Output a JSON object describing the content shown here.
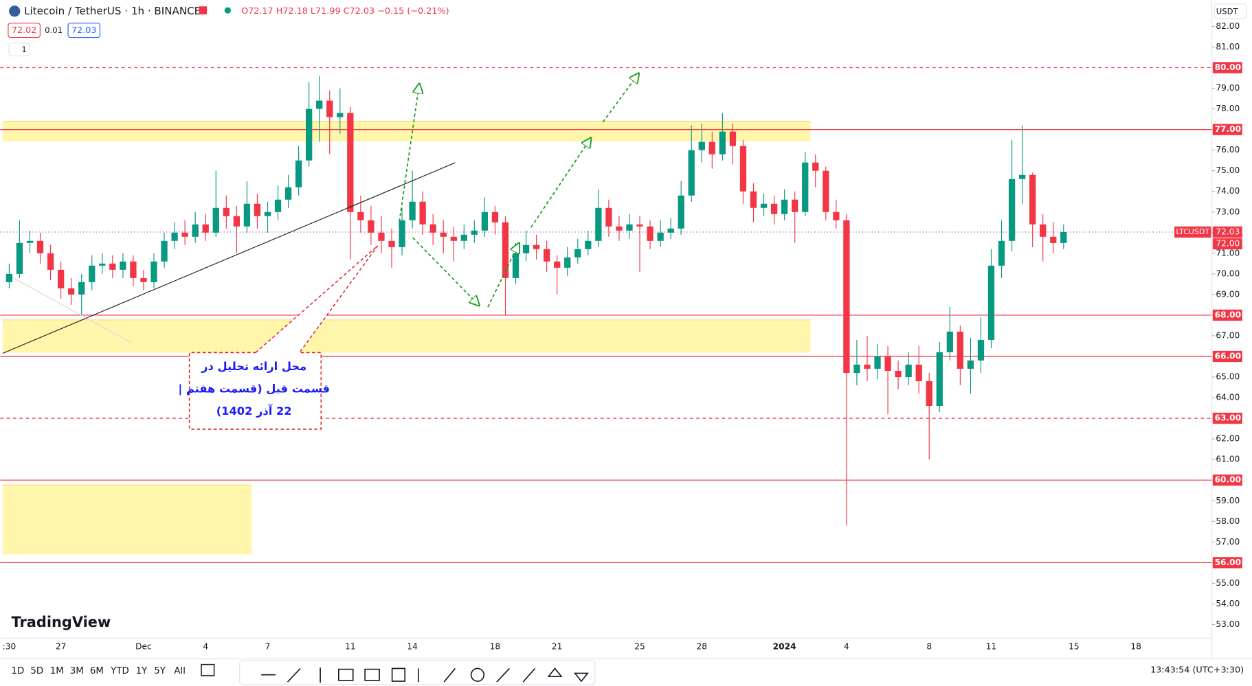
{
  "header": {
    "symbol": "Litecoin / TetherUS · 1h · BINANCE",
    "ohlc": "O72.17 H72.18 L71.99 C72.03 −0.15 (−0.21%)",
    "quote_boxes": [
      "72.02",
      "0.01",
      "72.03"
    ],
    "indicator": "1",
    "currency": "USDT"
  },
  "logo": "TradingView",
  "toolbar": {
    "intervals": [
      "1D",
      "5D",
      "1M",
      "3M",
      "6M",
      "YTD",
      "1Y",
      "5Y",
      "All"
    ],
    "clock": "13:43:54 (UTC+3:30)"
  },
  "annotation": [
    "محل ارائه تحلیل در",
    "قسمت قبل (قسمت هفتم |",
    "22 آذر 1402)"
  ],
  "chart_data": {
    "type": "candlestick",
    "up_color": "#089981",
    "down_color": "#f23645",
    "categories": [
      ":30",
      null,
      null,
      null,
      null,
      "27",
      null,
      null,
      null,
      null,
      null,
      null,
      null,
      "Dec",
      null,
      null,
      null,
      null,
      null,
      "4",
      null,
      null,
      null,
      null,
      null,
      "7",
      null,
      null,
      null,
      null,
      null,
      null,
      null,
      "11",
      null,
      null,
      null,
      null,
      null,
      "14",
      null,
      null,
      null,
      null,
      null,
      null,
      null,
      "18",
      null,
      null,
      null,
      null,
      null,
      "21",
      null,
      null,
      null,
      null,
      null,
      null,
      null,
      "25",
      null,
      null,
      null,
      null,
      null,
      "28",
      null,
      null,
      null,
      null,
      null,
      null,
      null,
      "2024",
      null,
      null,
      null,
      null,
      null,
      "4",
      null,
      null,
      null,
      null,
      null,
      null,
      null,
      "8",
      null,
      null,
      null,
      null,
      null,
      "11",
      null,
      null,
      null,
      null,
      null,
      null,
      null,
      "15",
      null,
      null,
      null,
      null,
      null,
      "18"
    ],
    "open": [
      69.6,
      70.0,
      71.5,
      71.6,
      71.0,
      70.2,
      69.3,
      69.0,
      69.6,
      70.4,
      70.5,
      70.2,
      70.6,
      69.8,
      69.6,
      70.6,
      71.6,
      72.0,
      71.8,
      72.4,
      72.0,
      73.2,
      72.8,
      72.3,
      73.4,
      72.8,
      73.0,
      73.6,
      74.2,
      75.5,
      78.0,
      78.4,
      77.6,
      77.8,
      73.0,
      72.6,
      72.0,
      71.6,
      71.3,
      72.6,
      73.5,
      72.4,
      72.0,
      71.8,
      71.6,
      71.9,
      72.1,
      73.0,
      72.5,
      69.8,
      71.0,
      71.4,
      71.2,
      70.6,
      70.3,
      70.8,
      71.2,
      71.6,
      73.2,
      72.3,
      72.1,
      72.4,
      72.3,
      71.6,
      72.0,
      72.2,
      73.8,
      76.0,
      76.4,
      75.8,
      76.9,
      76.2,
      74.0,
      73.2,
      73.4,
      72.9,
      73.6,
      73.0,
      75.4,
      75.0,
      73.0,
      72.6,
      65.2,
      65.6,
      65.4,
      66.0,
      65.3,
      65.0,
      65.6,
      64.8,
      63.6,
      66.2,
      67.2,
      65.4,
      65.8,
      66.8,
      70.4,
      71.6,
      74.6,
      74.8,
      72.4,
      71.8,
      71.5,
      null,
      null,
      null,
      null,
      null,
      null,
      null
    ],
    "high": [
      70.5,
      72.6,
      72.1,
      72.0,
      71.4,
      70.6,
      69.8,
      70.0,
      70.9,
      71.0,
      70.9,
      71.0,
      70.9,
      70.2,
      71.0,
      72.0,
      72.5,
      72.6,
      73.0,
      72.9,
      75.0,
      73.8,
      73.3,
      74.5,
      73.9,
      73.5,
      74.3,
      74.8,
      76.2,
      79.3,
      79.6,
      78.9,
      79.0,
      78.1,
      73.8,
      73.3,
      72.8,
      72.2,
      73.2,
      75.0,
      74.0,
      72.9,
      72.6,
      72.3,
      72.4,
      72.6,
      73.7,
      73.3,
      72.8,
      71.5,
      72.1,
      71.9,
      71.6,
      70.9,
      71.3,
      71.7,
      72.1,
      74.1,
      73.6,
      72.8,
      72.9,
      72.8,
      72.6,
      72.6,
      72.7,
      74.5,
      77.2,
      77.3,
      76.9,
      77.8,
      77.3,
      76.5,
      74.4,
      73.9,
      73.8,
      74.1,
      74.0,
      75.9,
      75.8,
      75.2,
      73.6,
      72.9,
      66.8,
      67.0,
      66.6,
      66.5,
      65.8,
      66.2,
      66.5,
      65.2,
      66.7,
      68.4,
      67.5,
      66.9,
      67.9,
      71.2,
      72.6,
      76.5,
      77.2,
      74.9,
      72.9,
      72.5,
      72.4,
      null,
      null,
      null,
      null,
      null,
      null,
      null
    ],
    "low": [
      69.3,
      69.8,
      71.0,
      70.5,
      69.7,
      68.8,
      68.5,
      68.0,
      69.2,
      70.0,
      69.8,
      69.8,
      69.4,
      69.2,
      69.3,
      70.3,
      71.2,
      71.4,
      71.5,
      71.6,
      71.8,
      72.2,
      71.0,
      72.0,
      72.2,
      72.0,
      72.6,
      73.2,
      73.8,
      75.2,
      76.4,
      75.8,
      76.8,
      70.7,
      72.0,
      71.4,
      71.0,
      70.3,
      70.9,
      72.2,
      71.9,
      71.4,
      71.0,
      70.6,
      71.2,
      71.5,
      71.8,
      71.9,
      68.0,
      69.5,
      70.6,
      70.7,
      70.1,
      69.0,
      69.9,
      70.5,
      70.9,
      71.3,
      71.8,
      71.6,
      71.7,
      70.1,
      71.2,
      71.3,
      71.7,
      71.9,
      73.5,
      75.4,
      75.1,
      75.5,
      75.3,
      73.4,
      72.5,
      72.8,
      72.4,
      72.6,
      71.5,
      72.8,
      74.2,
      72.6,
      72.2,
      57.8,
      64.6,
      64.8,
      64.9,
      63.2,
      64.4,
      64.6,
      64.2,
      61.0,
      63.3,
      65.8,
      64.6,
      64.2,
      65.2,
      66.4,
      69.8,
      71.1,
      73.4,
      71.3,
      70.6,
      71.0,
      71.2,
      null,
      null,
      null,
      null,
      null,
      null,
      null
    ],
    "close": [
      70.0,
      71.5,
      71.6,
      71.0,
      70.2,
      69.3,
      69.0,
      69.6,
      70.4,
      70.5,
      70.2,
      70.6,
      69.8,
      69.6,
      70.6,
      71.6,
      72.0,
      71.8,
      72.4,
      72.0,
      73.2,
      72.8,
      72.3,
      73.4,
      72.8,
      73.0,
      73.6,
      74.2,
      75.5,
      78.0,
      78.4,
      77.6,
      77.8,
      73.0,
      72.6,
      72.0,
      71.6,
      71.3,
      72.6,
      73.5,
      72.4,
      72.0,
      71.8,
      71.6,
      71.9,
      72.1,
      73.0,
      72.5,
      69.8,
      71.0,
      71.4,
      71.2,
      70.6,
      70.3,
      70.8,
      71.2,
      71.6,
      73.2,
      72.3,
      72.1,
      72.4,
      72.3,
      71.6,
      72.0,
      72.2,
      73.8,
      76.0,
      76.4,
      75.8,
      76.9,
      76.2,
      74.0,
      73.2,
      73.4,
      72.9,
      73.6,
      73.0,
      75.4,
      75.0,
      73.0,
      72.6,
      65.2,
      65.6,
      65.4,
      66.0,
      65.3,
      65.0,
      65.6,
      64.8,
      63.6,
      66.2,
      67.2,
      65.4,
      65.8,
      66.8,
      70.4,
      71.6,
      74.6,
      74.8,
      72.4,
      71.8,
      71.5,
      72.03,
      null,
      null,
      null,
      null,
      null,
      null,
      null
    ],
    "ylim": [
      52.34,
      83.28
    ],
    "yticks": [
      {
        "value": 53,
        "label": "53.00"
      },
      {
        "value": 54,
        "label": "54.00"
      },
      {
        "value": 55,
        "label": "55.00"
      },
      {
        "value": 56,
        "label": "56.00"
      },
      {
        "value": 57,
        "label": "57.00"
      },
      {
        "value": 58,
        "label": "58.00"
      },
      {
        "value": 59,
        "label": "59.00"
      },
      {
        "value": 60,
        "label": "60.00"
      },
      {
        "value": 61,
        "label": "61.00"
      },
      {
        "value": 62,
        "label": "62.00"
      },
      {
        "value": 63,
        "label": "63.00"
      },
      {
        "value": 64,
        "label": "64.00"
      },
      {
        "value": 65,
        "label": "65.00"
      },
      {
        "value": 66,
        "label": "66.00"
      },
      {
        "value": 67,
        "label": "67.00"
      },
      {
        "value": 68,
        "label": "68.00"
      },
      {
        "value": 69,
        "label": "69.00"
      },
      {
        "value": 70,
        "label": "70.00"
      },
      {
        "value": 71,
        "label": "71.00"
      },
      {
        "value": 72,
        "label": "72.00"
      },
      {
        "value": 73,
        "label": "73.00"
      },
      {
        "value": 74,
        "label": "74.00"
      },
      {
        "value": 75,
        "label": "75.00"
      },
      {
        "value": 76,
        "label": "76.00"
      },
      {
        "value": 77,
        "label": "77.00"
      },
      {
        "value": 78,
        "label": "78.00"
      },
      {
        "value": 79,
        "label": "79.00"
      },
      {
        "value": 80,
        "label": "80.00"
      },
      {
        "value": 81,
        "label": "81.00"
      },
      {
        "value": 82,
        "label": "82.00"
      }
    ],
    "levels": [
      {
        "value": 80,
        "label": "80.00",
        "dashed": true
      },
      {
        "value": 77,
        "label": "77.00",
        "dashed": false
      },
      {
        "value": 68,
        "label": "68.00",
        "dashed": false
      },
      {
        "value": 66,
        "label": "66.00",
        "dashed": false
      },
      {
        "value": 63,
        "label": "63.00",
        "dashed": true
      },
      {
        "value": 60,
        "label": "60.00",
        "dashed": false
      },
      {
        "value": 56,
        "label": "56.00",
        "dashed": false
      }
    ],
    "level_color": "#f23645",
    "zones": [
      {
        "top": 77.4,
        "bottom": 76.43,
        "wide": true
      },
      {
        "top": 67.77,
        "bottom": 66.18,
        "wide": true
      },
      {
        "top": 59.77,
        "bottom": 56.4,
        "wide": false
      }
    ],
    "zone_color": "#fff59d",
    "last_price": 72.03,
    "symbol_tag": "LTCUSDT",
    "bid_tag": {
      "value": 72,
      "label": "72.00"
    }
  }
}
